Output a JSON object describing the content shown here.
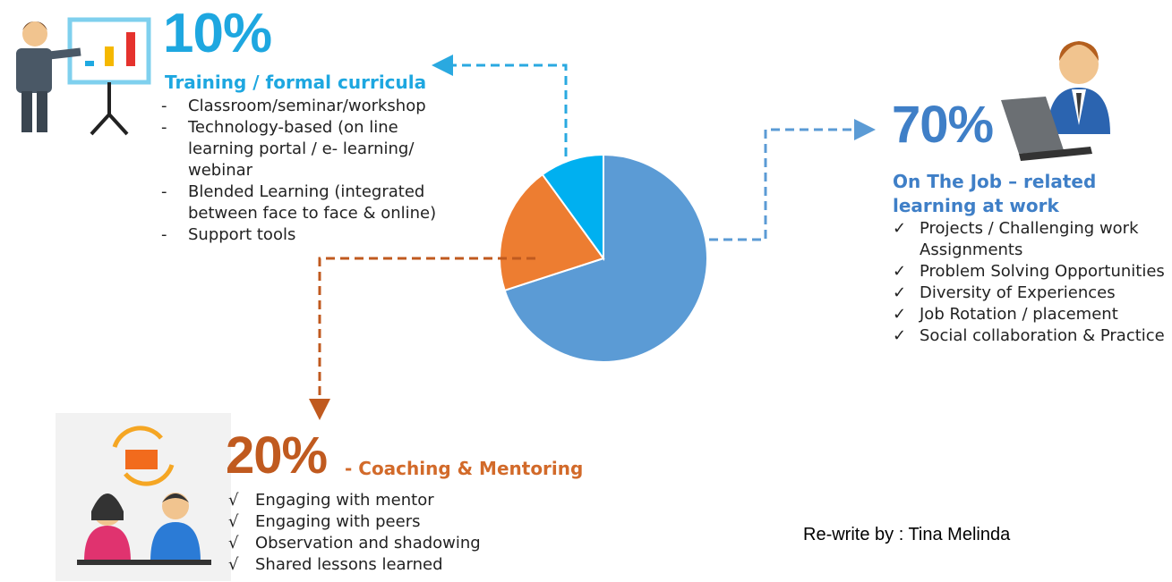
{
  "chart_data": {
    "type": "pie",
    "categories": [
      "On The Job – related learning at work",
      "- Coaching & Mentoring",
      "Training / formal curricula"
    ],
    "values": [
      70,
      20,
      10
    ],
    "value_labels": [
      "70%",
      "20%",
      "10%"
    ],
    "colors": [
      "#5b9bd5",
      "#ed7d31",
      "#00b0f0"
    ]
  },
  "sections": [
    {
      "marker": "✓",
      "items": [
        "Projects / Challenging work Assignments",
        "Problem Solving Opportunities",
        "Diversity of Experiences",
        "Job Rotation / placement",
        "Social collaboration & Practice"
      ]
    },
    {
      "marker": "√",
      "items": [
        "Engaging with mentor",
        "Engaging with peers",
        "Observation and shadowing",
        "Shared lessons learned"
      ]
    },
    {
      "marker": "-",
      "items": [
        "Classroom/seminar/workshop",
        "Technology-based (on line learning portal / e- learning/ webinar",
        "Blended Learning (integrated between face to face & online)",
        "Support tools"
      ]
    }
  ],
  "credit": "Re-write by : Tina Melinda"
}
